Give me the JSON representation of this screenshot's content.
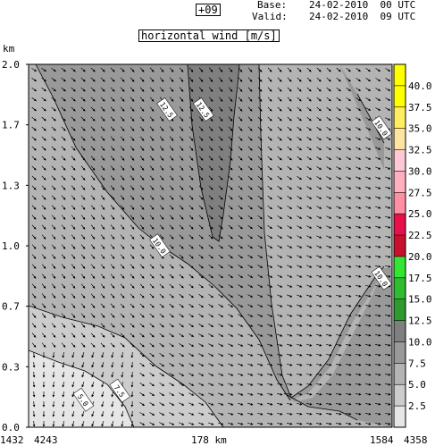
{
  "header": {
    "forecast_hour": "+09",
    "base_label": "Base:",
    "base_value": "24-02-2010  00 UTC",
    "valid_label": "Valid:",
    "valid_value": "24-02-2010  09 UTC"
  },
  "chart_data": {
    "type": "heatmap",
    "title": "horizontal wind [m/s]",
    "yunit": "km",
    "ylim": [
      0.0,
      2.0
    ],
    "y_ticks": [
      "2.0",
      "1.7",
      "1.3",
      "1.0",
      "0.7",
      "0.3",
      "0.0"
    ],
    "x_labels": {
      "left_top": "1432",
      "left_bottom": "4243",
      "center": "178 km",
      "right_top": "1584",
      "right_bottom": "4358"
    },
    "colorbar": {
      "levels": [
        "2.5",
        "5.0",
        "7.5",
        "10.0",
        "12.5",
        "15.0",
        "17.5",
        "20.0",
        "22.5",
        "25.0",
        "27.5",
        "30.0",
        "32.5",
        "35.0",
        "37.5",
        "40.0"
      ],
      "colors": [
        "#e6e6e6",
        "#cccccc",
        "#b4b4b4",
        "#999999",
        "#7f7f7f",
        "#2e9b2e",
        "#2ebd2e",
        "#33e633",
        "#c8102e",
        "#e8104a",
        "#ff8fa3",
        "#ffb0c0",
        "#ffc8d4",
        "#ffe3a0",
        "#ffef60",
        "#ffff00",
        "#ffff00"
      ]
    },
    "contour_labels": [
      {
        "text": "12.5",
        "x": 0.38,
        "y": 1.75
      },
      {
        "text": "12.5",
        "x": 0.48,
        "y": 1.75
      },
      {
        "text": "10.0",
        "x": 0.97,
        "y": 1.65
      },
      {
        "text": "10.0",
        "x": 0.36,
        "y": 1.0
      },
      {
        "text": "10.0",
        "x": 0.97,
        "y": 0.82
      },
      {
        "text": "7.5",
        "x": 0.25,
        "y": 0.2
      },
      {
        "text": "5.0",
        "x": 0.15,
        "y": 0.15
      }
    ],
    "shading": [
      {
        "level": "7.5",
        "color": "#b4b4b4"
      },
      {
        "level": "10.0",
        "color": "#999999"
      },
      {
        "level": "12.5",
        "color": "#7f7f7f"
      },
      {
        "level": "5.0",
        "color": "#cccccc"
      },
      {
        "level": "2.5",
        "color": "#e6e6e6"
      }
    ]
  }
}
